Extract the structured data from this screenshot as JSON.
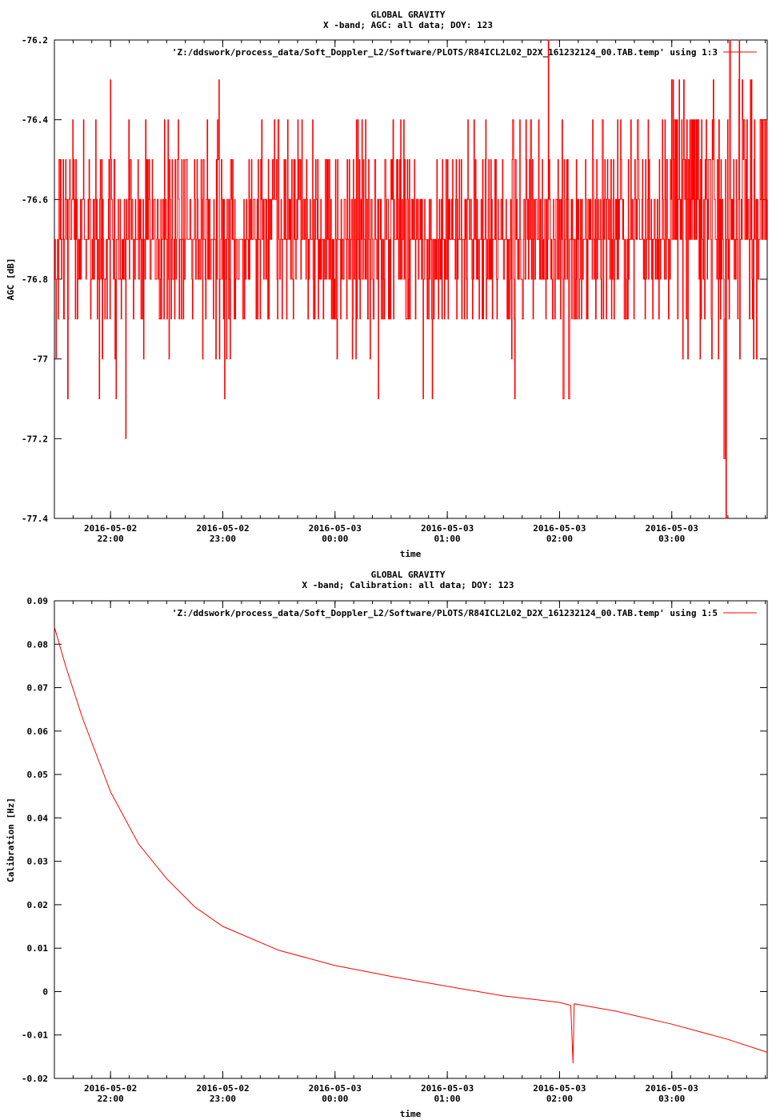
{
  "chart_data": [
    {
      "type": "line",
      "title": "GLOBAL GRAVITY",
      "subtitle": "X -band; AGC: all data; DOY: 123",
      "xlabel": "time",
      "ylabel": "AGC [dB]",
      "ylim": [
        -77.4,
        -76.2
      ],
      "yticks": [
        "-76.2",
        "-76.4",
        "-76.6",
        "-76.8",
        "-77",
        "-77.2",
        "-77.4"
      ],
      "ytick_values": [
        -76.2,
        -76.4,
        -76.6,
        -76.8,
        -77,
        -77.2,
        -77.4
      ],
      "xlim_hours": [
        21.5,
        27.85
      ],
      "xticks": [
        {
          "date": "2016-05-02",
          "time": "22:00",
          "value": 22
        },
        {
          "date": "2016-05-02",
          "time": "23:00",
          "value": 23
        },
        {
          "date": "2016-05-03",
          "time": "00:00",
          "value": 24
        },
        {
          "date": "2016-05-03",
          "time": "01:00",
          "value": 25
        },
        {
          "date": "2016-05-03",
          "time": "02:00",
          "value": 26
        },
        {
          "date": "2016-05-03",
          "time": "03:00",
          "value": 27
        }
      ],
      "grid": false,
      "legend_position": "top-right",
      "series": [
        {
          "name": "'Z:/ddswork/process_data/Soft_Doppler_L2/Software/PLOTS/R84ICL2L02_D2X_161232124_00.TAB.temp' using 1:3",
          "color": "#ff0000",
          "baseline": -76.7,
          "range_low": -77.0,
          "range_high": -76.4,
          "spikes": [
            {
              "time": "2016-05-02 21:37",
              "value": -77.1
            },
            {
              "time": "2016-05-02 21:54",
              "value": -77.1
            },
            {
              "time": "2016-05-02 22:03",
              "value": -77.1
            },
            {
              "time": "2016-05-02 22:08",
              "value": -77.2
            },
            {
              "time": "2016-05-02 23:01",
              "value": -77.1
            },
            {
              "time": "2016-05-03 00:23",
              "value": -77.1
            },
            {
              "time": "2016-05-03 00:47",
              "value": -77.1
            },
            {
              "time": "2016-05-03 00:52",
              "value": -77.1
            },
            {
              "time": "2016-05-03 01:36",
              "value": -77.1
            },
            {
              "time": "2016-05-03 02:02",
              "value": -77.1
            },
            {
              "time": "2016-05-03 02:05",
              "value": -77.1
            },
            {
              "time": "2016-05-03 03:28",
              "value": -77.25
            },
            {
              "time": "2016-05-03 03:29",
              "value": -77.4
            },
            {
              "time": "2016-05-02 22:00",
              "value": -76.3
            },
            {
              "time": "2016-05-02 22:58",
              "value": -76.3
            },
            {
              "time": "2016-05-03 01:54",
              "value": -76.2
            },
            {
              "time": "2016-05-03 03:31",
              "value": -76.2
            },
            {
              "time": "2016-05-03 03:36",
              "value": -76.2
            }
          ]
        }
      ]
    },
    {
      "type": "line",
      "title": "GLOBAL GRAVITY",
      "subtitle": "X -band; Calibration: all data; DOY: 123",
      "xlabel": "time",
      "ylabel": "Calibration [Hz]",
      "ylim": [
        -0.02,
        0.09
      ],
      "yticks": [
        "0.09",
        "0.08",
        "0.07",
        "0.06",
        "0.05",
        "0.04",
        "0.03",
        "0.02",
        "0.01",
        "0",
        "-0.01",
        "-0.02"
      ],
      "ytick_values": [
        0.09,
        0.08,
        0.07,
        0.06,
        0.05,
        0.04,
        0.03,
        0.02,
        0.01,
        0,
        -0.01,
        -0.02
      ],
      "xlim_hours": [
        21.5,
        27.85
      ],
      "xticks": [
        {
          "date": "2016-05-02",
          "time": "22:00",
          "value": 22
        },
        {
          "date": "2016-05-02",
          "time": "23:00",
          "value": 23
        },
        {
          "date": "2016-05-03",
          "time": "00:00",
          "value": 24
        },
        {
          "date": "2016-05-03",
          "time": "01:00",
          "value": 25
        },
        {
          "date": "2016-05-03",
          "time": "02:00",
          "value": 26
        },
        {
          "date": "2016-05-03",
          "time": "03:00",
          "value": 27
        }
      ],
      "grid": false,
      "legend_position": "top-right",
      "series": [
        {
          "name": "'Z:/ddswork/process_data/Soft_Doppler_L2/Software/PLOTS/R84ICL2L02_D2X_161232124_00.TAB.temp' using 1:5",
          "color": "#ff0000",
          "points": [
            {
              "x": 21.5,
              "y": 0.084
            },
            {
              "x": 21.6,
              "y": 0.075
            },
            {
              "x": 21.75,
              "y": 0.063
            },
            {
              "x": 22.0,
              "y": 0.046
            },
            {
              "x": 22.25,
              "y": 0.034
            },
            {
              "x": 22.5,
              "y": 0.026
            },
            {
              "x": 22.75,
              "y": 0.0195
            },
            {
              "x": 23.0,
              "y": 0.015
            },
            {
              "x": 23.5,
              "y": 0.0095
            },
            {
              "x": 24.0,
              "y": 0.006
            },
            {
              "x": 24.5,
              "y": 0.0035
            },
            {
              "x": 25.0,
              "y": 0.0012
            },
            {
              "x": 25.5,
              "y": -0.001
            },
            {
              "x": 26.0,
              "y": -0.0025
            },
            {
              "x": 26.1,
              "y": -0.0032
            },
            {
              "x": 26.12,
              "y": -0.0165
            },
            {
              "x": 26.13,
              "y": -0.0028
            },
            {
              "x": 26.5,
              "y": -0.0045
            },
            {
              "x": 27.0,
              "y": -0.0075
            },
            {
              "x": 27.5,
              "y": -0.011
            },
            {
              "x": 27.85,
              "y": -0.014
            }
          ]
        }
      ]
    }
  ]
}
